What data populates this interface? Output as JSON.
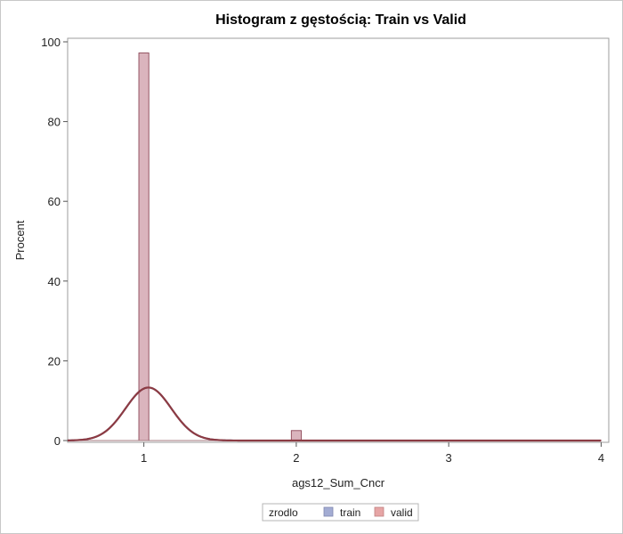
{
  "chart_data": {
    "type": "bar",
    "title": "Histogram z gęstością: Train vs Valid",
    "xlabel": "ags12_Sum_Cncr",
    "ylabel": "Procent",
    "xlim": [
      0.5,
      4.05
    ],
    "ylim": [
      0,
      100
    ],
    "xticks": [
      "1",
      "2",
      "3",
      "4"
    ],
    "yticks": [
      "0",
      "20",
      "40",
      "60",
      "80",
      "100"
    ],
    "grid": false,
    "legend": {
      "title": "zrodlo",
      "position": "bottom-center",
      "entries": [
        {
          "name": "train",
          "color": "#a3acd3"
        },
        {
          "name": "valid",
          "color": "#e6a5a5"
        }
      ]
    },
    "bin_width": 0.065,
    "series": [
      {
        "name": "train",
        "x": [
          1,
          2
        ],
        "values": [
          97.2,
          2.5
        ]
      },
      {
        "name": "valid",
        "x": [
          1,
          2
        ],
        "values": [
          97.2,
          2.5
        ]
      }
    ],
    "density_curve": {
      "type": "normal",
      "mean": 1.03,
      "sd": 0.15,
      "peak_percent": 13.3,
      "color": "#8c3b43"
    },
    "colors": {
      "overlap_fill": "#c7808f",
      "overlap_edge": "#8e4d5c"
    }
  }
}
